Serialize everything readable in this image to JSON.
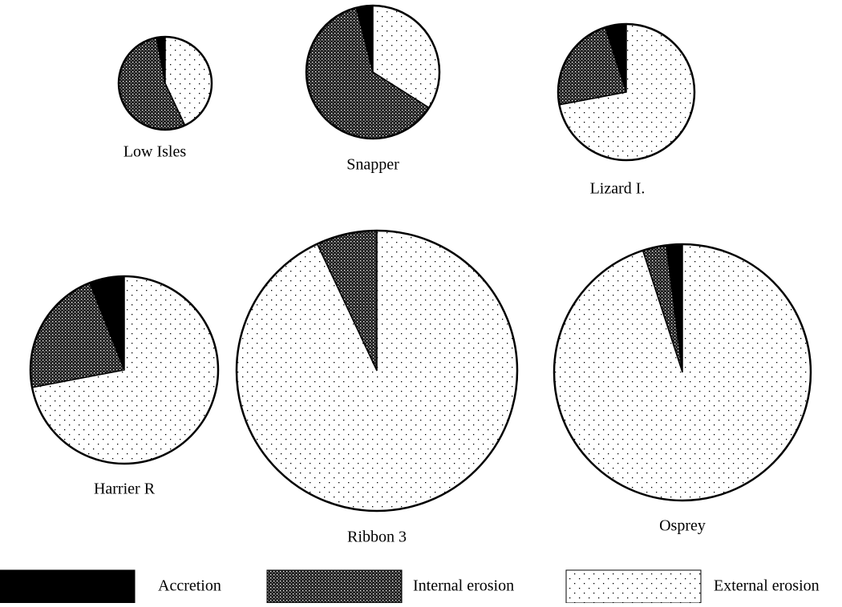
{
  "chart_data": [
    {
      "type": "pie",
      "title": "Low Isles",
      "values": [
        3,
        54,
        43
      ],
      "size": 58
    },
    {
      "type": "pie",
      "title": "Snapper",
      "values": [
        4,
        62,
        34
      ],
      "size": 83
    },
    {
      "type": "pie",
      "title": "Lizard I.",
      "values": [
        5,
        23,
        72
      ],
      "size": 85
    },
    {
      "type": "pie",
      "title": "Harrier R",
      "values": [
        6,
        22,
        72
      ],
      "size": 117
    },
    {
      "type": "pie",
      "title": "Ribbon 3",
      "values": [
        0,
        7,
        93
      ],
      "size": 175
    },
    {
      "type": "pie",
      "title": "Osprey",
      "values": [
        2,
        3,
        95
      ],
      "size": 160
    }
  ],
  "legend": {
    "labels": [
      "Accretion",
      "Internal erosion",
      "External erosion"
    ],
    "patterns": [
      "solid",
      "dense",
      "sparse"
    ]
  }
}
